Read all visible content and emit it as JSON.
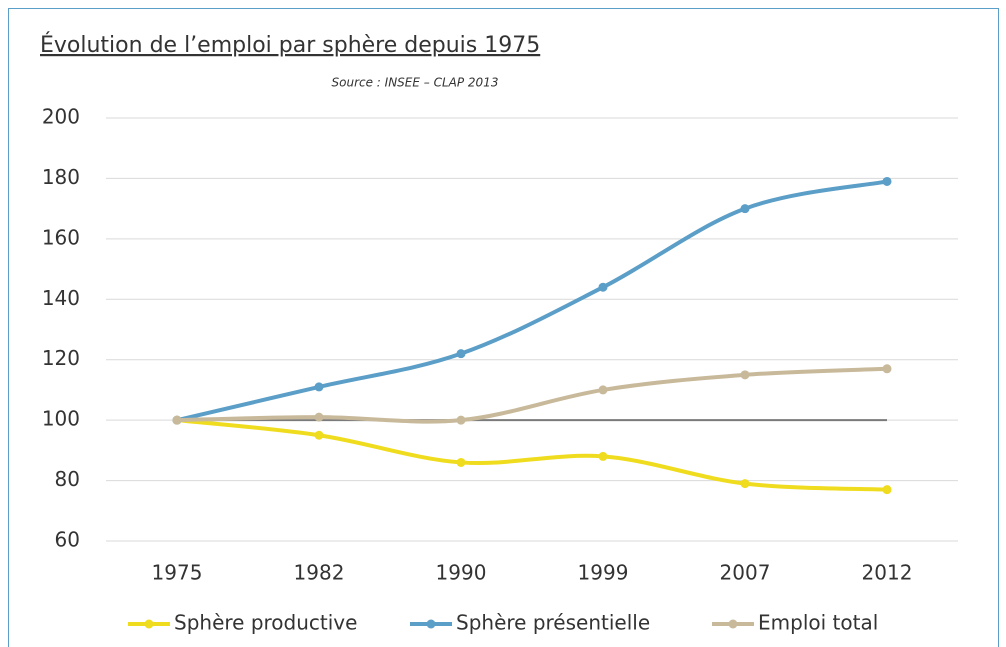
{
  "chart_data": {
    "type": "line",
    "title": "Évolution de l’emploi par sphère depuis 1975",
    "subtitle": "Source : INSEE – CLAP 2013",
    "categories": [
      "1975",
      "1982",
      "1990",
      "1999",
      "2007",
      "2012"
    ],
    "series": [
      {
        "name": "Sphère productive",
        "color": "#f0dc1e",
        "values": [
          100,
          95,
          86,
          88,
          79,
          77
        ]
      },
      {
        "name": "Sphère présentielle",
        "color": "#5b9ec7",
        "values": [
          100,
          111,
          122,
          144,
          170,
          179
        ]
      },
      {
        "name": "Emploi total",
        "color": "#c8b99a",
        "values": [
          100,
          101,
          100,
          110,
          115,
          117
        ]
      }
    ],
    "reference_line": 100,
    "reference_color": "#7a7a7a",
    "ylim": [
      60,
      200
    ],
    "yticks": [
      60,
      80,
      100,
      120,
      140,
      160,
      180,
      200
    ],
    "grid": true,
    "smooth": true,
    "legend": "bottom"
  }
}
